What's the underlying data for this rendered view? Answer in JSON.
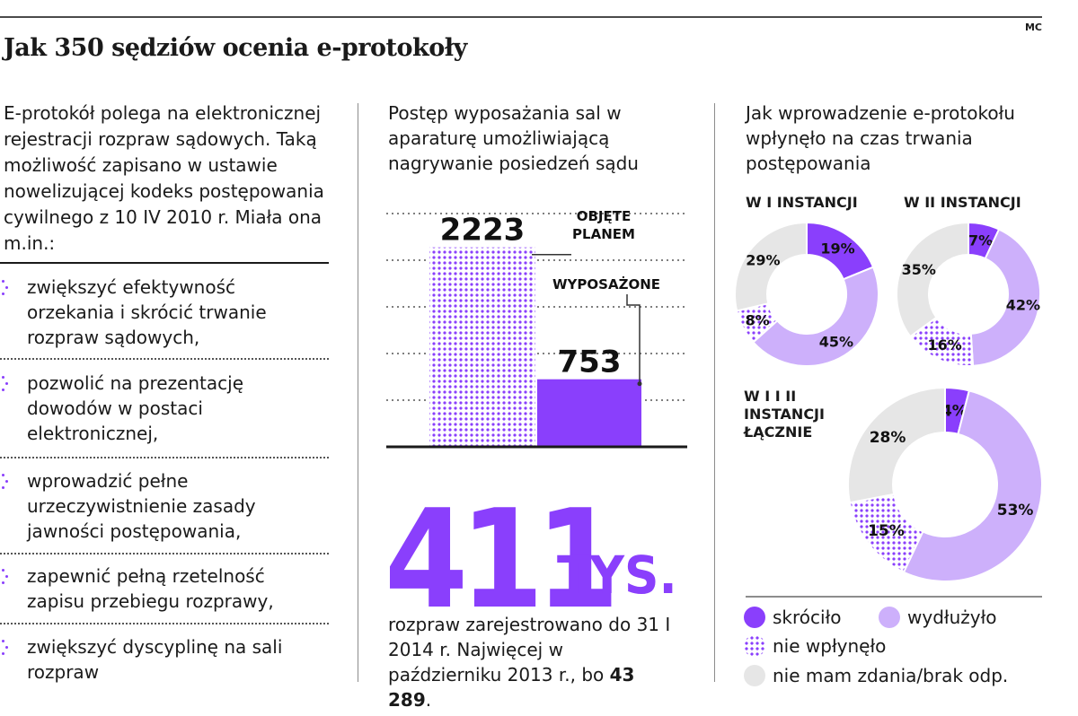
{
  "header": {
    "title": "Jak 350 sędziów ocenia e-protokoły",
    "credit": "MC"
  },
  "colors": {
    "accent": "#8a3ffc",
    "light": "#cdb0fb",
    "grey": "#e6e6e6",
    "text": "#1a1a1a"
  },
  "intro": {
    "text": "E-protokół polega na elektronicznej rejestracji rozpraw sądowych. Taką możliwość zapisano w ustawie nowelizującej kodeks postępowania cywilnego z 10 IV 2010 r. Miała ona m.in.:",
    "items": [
      "zwiększyć efektywność orzekania i skrócić trwanie rozpraw sądowych,",
      "pozwolić na prezentację dowodów w postaci elektronicznej,",
      "wprowadzić pełne urzeczywistnienie zasady jawności postępowania,",
      "zapewnić pełną rzetelność zapisu przebiegu rozprawy,",
      "zwiększyć dyscyplinę na sali rozpraw"
    ]
  },
  "middle": {
    "heading": "Postęp wyposażania sal w aparaturę umożliwiającą nagrywanie posiedzeń sądu",
    "big_number": "411",
    "big_unit": "TYS.",
    "caption_text": "rozpraw zarejestrowano do 31 I 2014 r. Najwięcej w październiku 2013 r., bo",
    "caption_bold": "43 289",
    "caption_end": "."
  },
  "right": {
    "heading": "Jak wprowadzenie e-protokołu wpłynęło na czas trwania postępowania",
    "legend": [
      {
        "label": "skróciło",
        "color": "#8a3ffc"
      },
      {
        "label": "wydłużyło",
        "color": "#cdb0fb"
      },
      {
        "label": "nie wpłynęło",
        "color": "pattern"
      },
      {
        "label": "nie mam zdania/brak odp.",
        "color": "#e6e6e6"
      }
    ]
  },
  "chart_data": [
    {
      "type": "bar",
      "categories": [
        "OBJĘTE PLANEM",
        "WYPOSAŻONE"
      ],
      "values": [
        2223,
        753
      ],
      "value_labels": [
        "2223",
        "753"
      ],
      "category_labels": [
        "OBJĘTE\nPLANEM",
        "WYPOSAŻONE"
      ],
      "ylim": [
        0,
        2700
      ],
      "grid": true
    },
    {
      "type": "pie",
      "title": "W I INSTANCJI",
      "categories": [
        "skróciło",
        "wydłużyło",
        "nie wpłynęło",
        "nie mam zdania/brak odp."
      ],
      "values": [
        19,
        45,
        8,
        29
      ],
      "value_labels": [
        "19%",
        "45%",
        "8%",
        "29%"
      ]
    },
    {
      "type": "pie",
      "title": "W II INSTANCJI",
      "categories": [
        "skróciło",
        "wydłużyło",
        "nie wpłynęło",
        "nie mam zdania/brak odp."
      ],
      "values": [
        7,
        42,
        16,
        35
      ],
      "value_labels": [
        "7%",
        "42%",
        "16%",
        "35%"
      ]
    },
    {
      "type": "pie",
      "title": "W I I II INSTANCJI ŁĄCZNIE",
      "categories": [
        "skróciło",
        "wydłużyło",
        "nie wpłynęło",
        "nie mam zdania/brak odp."
      ],
      "values": [
        4,
        53,
        15,
        28
      ],
      "value_labels": [
        "4%",
        "53%",
        "15%",
        "28%"
      ]
    }
  ]
}
